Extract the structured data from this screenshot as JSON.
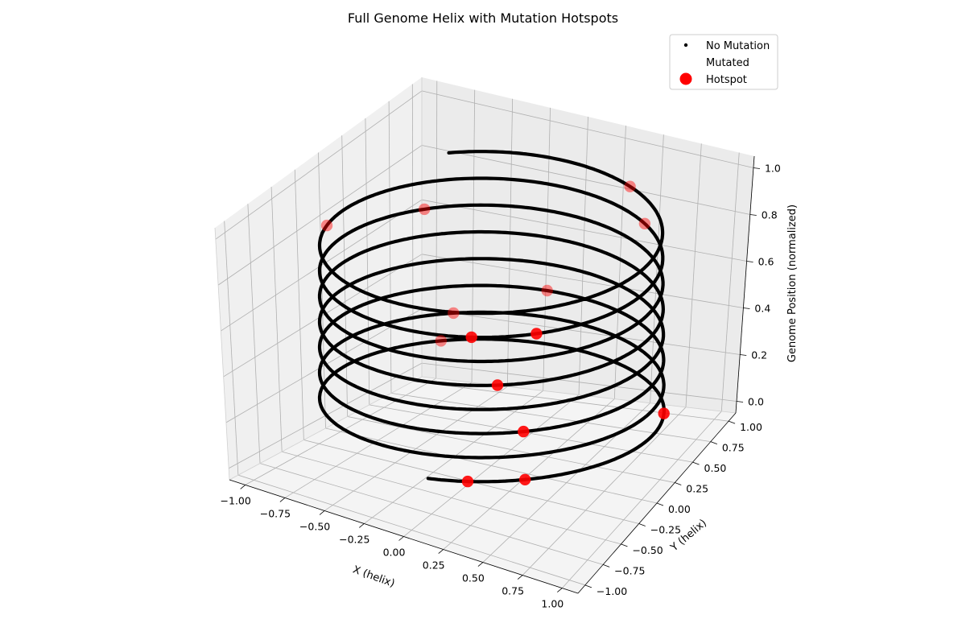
{
  "chart_data": {
    "type": "scatter",
    "projection": "3d",
    "title": "Full Genome Helix with Mutation Hotspots",
    "xlabel": "X (helix)",
    "ylabel": "Y (helix)",
    "zlabel": "Genome Position (normalized)",
    "xlim": [
      -1.1,
      1.1
    ],
    "ylim": [
      -1.1,
      1.1
    ],
    "zlim": [
      -0.05,
      1.05
    ],
    "x_ticks": [
      "−1.00",
      "−0.75",
      "−0.50",
      "−0.25",
      "0.00",
      "0.25",
      "0.50",
      "0.75",
      "1.00"
    ],
    "y_ticks": [
      "−1.00",
      "−0.75",
      "−0.50",
      "−0.25",
      "0.00",
      "0.25",
      "0.50",
      "0.75",
      "1.00"
    ],
    "z_ticks": [
      "0.0",
      "0.2",
      "0.4",
      "0.6",
      "0.8",
      "1.0"
    ],
    "grid": true,
    "legend_position": "top-right",
    "helix": {
      "turns": 7.6,
      "radius": 1.0,
      "z_range": [
        0,
        1
      ]
    },
    "series": [
      {
        "name": "No Mutation",
        "color": "#000000",
        "marker": "small-dot"
      },
      {
        "name": "Mutated",
        "color": "#ffffff",
        "marker": "invisible"
      },
      {
        "name": "Hotspot",
        "color": "#ff0000",
        "marker": "large-circle",
        "points": [
          {
            "t": 0.005
          },
          {
            "t": 0.012
          },
          {
            "t": 0.04
          },
          {
            "t": 0.08
          },
          {
            "t": 0.21
          },
          {
            "t": 0.275
          },
          {
            "t": 0.33
          },
          {
            "t": 0.535
          },
          {
            "t": 0.74
          },
          {
            "t": 0.795
          },
          {
            "t": 0.803
          },
          {
            "t": 0.84
          },
          {
            "t": 0.89
          },
          {
            "t": 0.975
          }
        ]
      }
    ]
  }
}
